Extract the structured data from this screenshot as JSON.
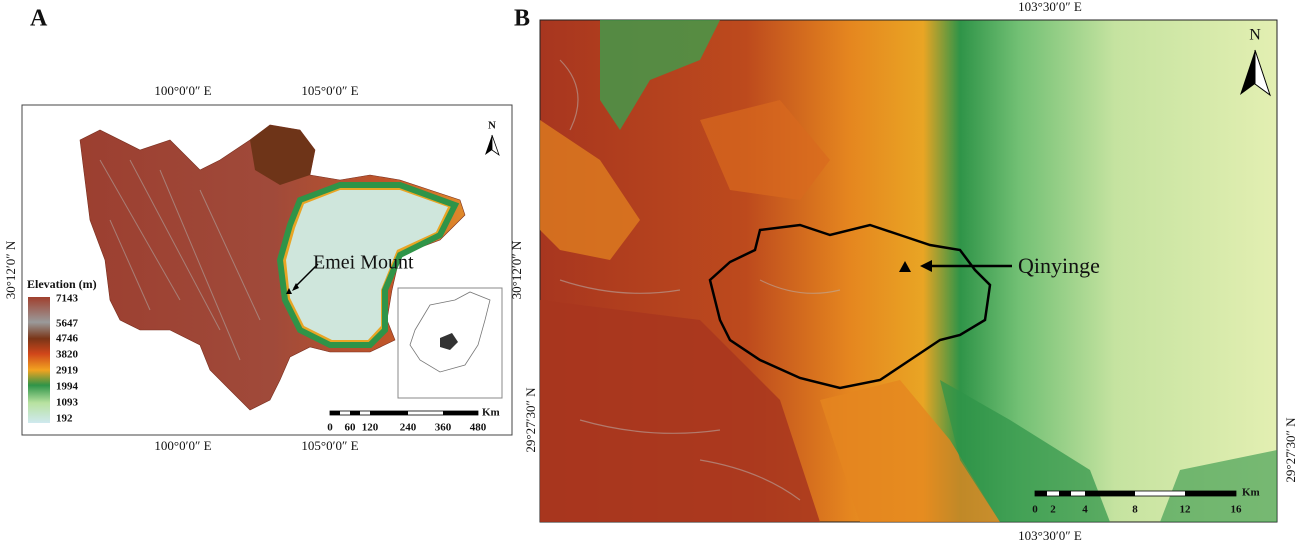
{
  "panel_a": {
    "label": "A",
    "top_labels": [
      "100°0′0″ E",
      "105°0′0″ E"
    ],
    "bottom_labels": [
      "100°0′0″ E",
      "105°0′0″ E"
    ],
    "left_label": "30°12′0″ N",
    "right_label": "30°12′0″ N",
    "north": "N",
    "legend": {
      "title": "Elevation (m)",
      "values": [
        7143,
        5647,
        4746,
        3820,
        2919,
        1994,
        1093,
        192
      ]
    },
    "annotation": "Emei Mount",
    "scale": {
      "unit": "Km",
      "labels": [
        0,
        60,
        120,
        240,
        360,
        480
      ]
    }
  },
  "panel_b": {
    "label": "B",
    "top_label": "103°30′0″ E",
    "bottom_label": "103°30′0″ E",
    "left_label": "29°27′30″ N",
    "right_label": "29°27′30″ N",
    "north": "N",
    "annotation": "Qinyinge",
    "scale": {
      "unit": "Km",
      "labels": [
        0,
        2,
        4,
        8,
        12,
        16
      ]
    }
  }
}
